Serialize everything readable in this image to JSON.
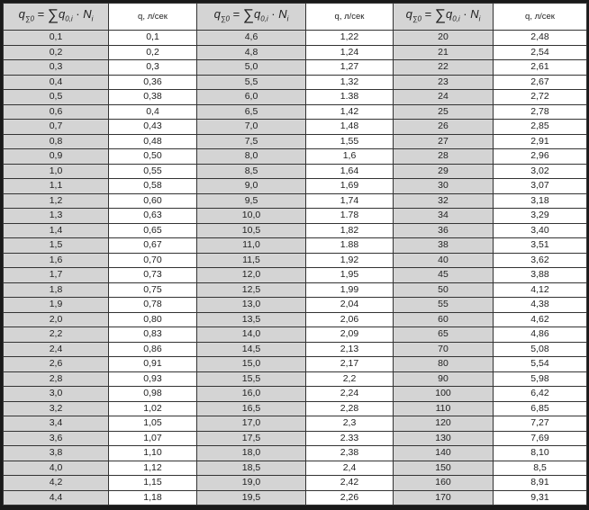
{
  "header": {
    "formula": {
      "q": "q",
      "q_sub": "∑0",
      "eq": " = ",
      "sum": "∑",
      "q0": "q",
      "q0_sub": "0,i",
      "dot": " · ",
      "n": "N",
      "n_sub": "i"
    },
    "flow_label": "q, л/сек"
  },
  "columns": [
    {
      "type": "formula"
    },
    {
      "type": "flow"
    },
    {
      "type": "formula"
    },
    {
      "type": "flow"
    },
    {
      "type": "formula"
    },
    {
      "type": "flow"
    }
  ],
  "rows": [
    [
      "0,1",
      "0,1",
      "4,6",
      "1,22",
      "20",
      "2,48"
    ],
    [
      "0,2",
      "0,2",
      "4,8",
      "1,24",
      "21",
      "2,54"
    ],
    [
      "0,3",
      "0,3",
      "5,0",
      "1,27",
      "22",
      "2,61"
    ],
    [
      "0,4",
      "0,36",
      "5,5",
      "1,32",
      "23",
      "2,67"
    ],
    [
      "0,5",
      "0,38",
      "6,0",
      "1.38",
      "24",
      "2,72"
    ],
    [
      "0,6",
      "0,4",
      "6,5",
      "1,42",
      "25",
      "2,78"
    ],
    [
      "0,7",
      "0,43",
      "7,0",
      "1,48",
      "26",
      "2,85"
    ],
    [
      "0,8",
      "0,48",
      "7,5",
      "1,55",
      "27",
      "2,91"
    ],
    [
      "0,9",
      "0,50",
      "8,0",
      "1,6",
      "28",
      "2,96"
    ],
    [
      "1,0",
      "0,55",
      "8,5",
      "1,64",
      "29",
      "3,02"
    ],
    [
      "1,1",
      "0,58",
      "9,0",
      "1,69",
      "30",
      "3,07"
    ],
    [
      "1,2",
      "0,60",
      "9,5",
      "1,74",
      "32",
      "3,18"
    ],
    [
      "1,3",
      "0,63",
      "10,0",
      "1.78",
      "34",
      "3,29"
    ],
    [
      "1,4",
      "0,65",
      "10,5",
      "1,82",
      "36",
      "3,40"
    ],
    [
      "1,5",
      "0,67",
      "11,0",
      "1.88",
      "38",
      "3,51"
    ],
    [
      "1,6",
      "0,70",
      "11,5",
      "1,92",
      "40",
      "3,62"
    ],
    [
      "1,7",
      "0,73",
      "12,0",
      "1,95",
      "45",
      "3,88"
    ],
    [
      "1,8",
      "0,75",
      "12,5",
      "1,99",
      "50",
      "4,12"
    ],
    [
      "1,9",
      "0,78",
      "13,0",
      "2,04",
      "55",
      "4,38"
    ],
    [
      "2,0",
      "0,80",
      "13,5",
      "2,06",
      "60",
      "4,62"
    ],
    [
      "2,2",
      "0,83",
      "14,0",
      "2,09",
      "65",
      "4,86"
    ],
    [
      "2,4",
      "0,86",
      "14,5",
      "2,13",
      "70",
      "5,08"
    ],
    [
      "2,6",
      "0,91",
      "15,0",
      "2,17",
      "80",
      "5,54"
    ],
    [
      "2,8",
      "0,93",
      "15,5",
      "2,2",
      "90",
      "5,98"
    ],
    [
      "3,0",
      "0,98",
      "16,0",
      "2,24",
      "100",
      "6,42"
    ],
    [
      "3,2",
      "1,02",
      "16,5",
      "2,28",
      "110",
      "6,85"
    ],
    [
      "3,4",
      "1,05",
      "17,0",
      "2,3",
      "120",
      "7,27"
    ],
    [
      "3,6",
      "1,07",
      "17,5",
      "2.33",
      "130",
      "7,69"
    ],
    [
      "3,8",
      "1,10",
      "18,0",
      "2,38",
      "140",
      "8,10"
    ],
    [
      "4,0",
      "1,12",
      "18,5",
      "2,4",
      "150",
      "8,5"
    ],
    [
      "4,2",
      "1,15",
      "19,0",
      "2,42",
      "160",
      "8,91"
    ],
    [
      "4,4",
      "1,18",
      "19,5",
      "2,26",
      "170",
      "9,31"
    ]
  ],
  "colors": {
    "shaded": "#d4d4d4",
    "plain": "#ffffff",
    "border": "#1a1a1a"
  }
}
